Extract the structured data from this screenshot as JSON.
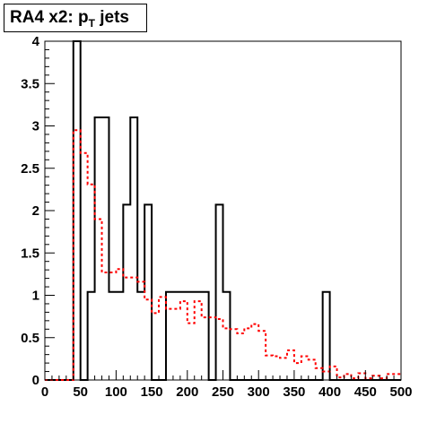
{
  "chart_data": {
    "type": "line",
    "title": "RA4 x2: p",
    "title_subscript": "T",
    "title_suffix": " jets",
    "xlim": [
      0,
      500
    ],
    "ylim": [
      0,
      4
    ],
    "x_ticks": [
      0,
      50,
      100,
      150,
      200,
      250,
      300,
      350,
      400,
      450,
      500
    ],
    "x_tick_labels": [
      "0",
      "50",
      "100",
      "150",
      "200",
      "250",
      "300",
      "350",
      "400",
      "450",
      "500"
    ],
    "y_ticks": [
      0,
      0.5,
      1,
      1.5,
      2,
      2.5,
      3,
      3.5,
      4
    ],
    "y_tick_labels": [
      "0",
      "0.5",
      "1",
      "1.5",
      "2",
      "2.5",
      "3",
      "3.5",
      "4"
    ],
    "grid": false,
    "series": [
      {
        "style": "solid-step",
        "color": "#000000",
        "bin_edges": [
          0,
          40,
          50,
          60,
          70,
          80,
          90,
          100,
          110,
          120,
          130,
          140,
          150,
          160,
          170,
          180,
          230,
          240,
          250,
          260,
          390,
          400,
          500
        ],
        "values": [
          0,
          4,
          0,
          1.04,
          3.1,
          3.1,
          1.04,
          1.04,
          2.07,
          3.1,
          1.04,
          2.07,
          0,
          0,
          1.04,
          1.04,
          0,
          2.07,
          1.04,
          0,
          1.04,
          0
        ]
      },
      {
        "style": "dashed-step",
        "color": "#ff0000",
        "bin_edges": [
          0,
          40,
          50,
          60,
          70,
          80,
          90,
          100,
          110,
          120,
          130,
          140,
          150,
          160,
          170,
          180,
          190,
          200,
          210,
          220,
          230,
          240,
          250,
          260,
          270,
          280,
          290,
          300,
          310,
          320,
          330,
          340,
          350,
          360,
          370,
          380,
          390,
          400,
          410,
          420,
          430,
          440,
          450,
          460,
          470,
          480,
          490,
          500
        ],
        "values": [
          0,
          2.95,
          2.68,
          2.31,
          1.9,
          1.27,
          1.27,
          1.31,
          1.21,
          1.21,
          1.16,
          0.95,
          0.79,
          0.98,
          0.84,
          0.84,
          0.93,
          0.67,
          0.93,
          0.74,
          0.74,
          0.72,
          0.61,
          0.6,
          0.55,
          0.61,
          0.66,
          0.58,
          0.29,
          0.28,
          0.26,
          0.35,
          0.2,
          0.28,
          0.24,
          0.14,
          0.1,
          0.16,
          0.03,
          0.07,
          0.02,
          0.08,
          0.02,
          0.05,
          0.02,
          0.07,
          0.07
        ]
      }
    ]
  }
}
